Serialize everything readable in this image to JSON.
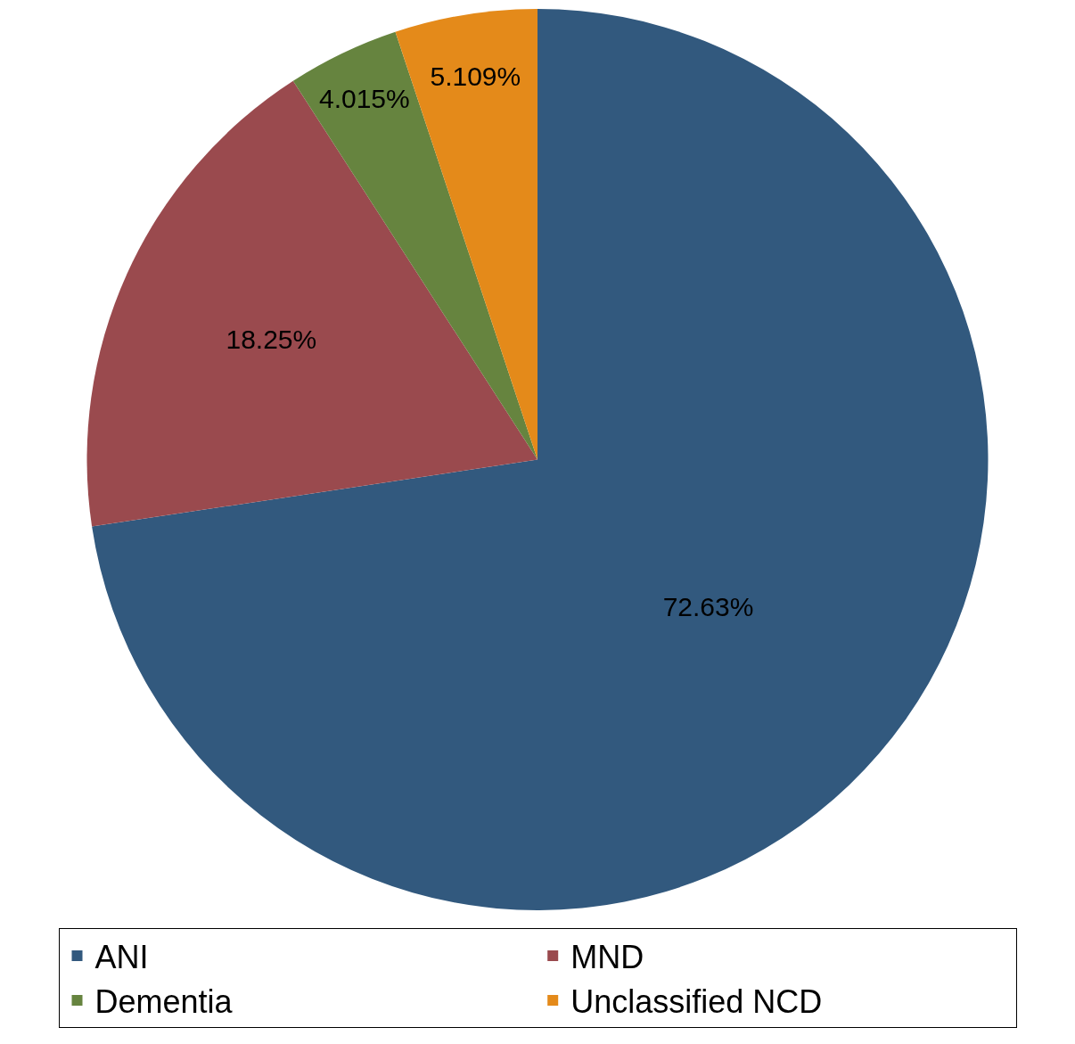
{
  "chart_data": {
    "type": "pie",
    "categories": [
      "ANI",
      "MND",
      "Dementia",
      "Unclassified NCD"
    ],
    "values": [
      72.63,
      18.25,
      4.015,
      5.109
    ],
    "colors": [
      "#32597e",
      "#9a4a4e",
      "#66843f",
      "#e48a1a"
    ],
    "value_labels": [
      "72.63%",
      "18.25%",
      "4.015%",
      "5.109%"
    ],
    "legend": "bottom"
  }
}
